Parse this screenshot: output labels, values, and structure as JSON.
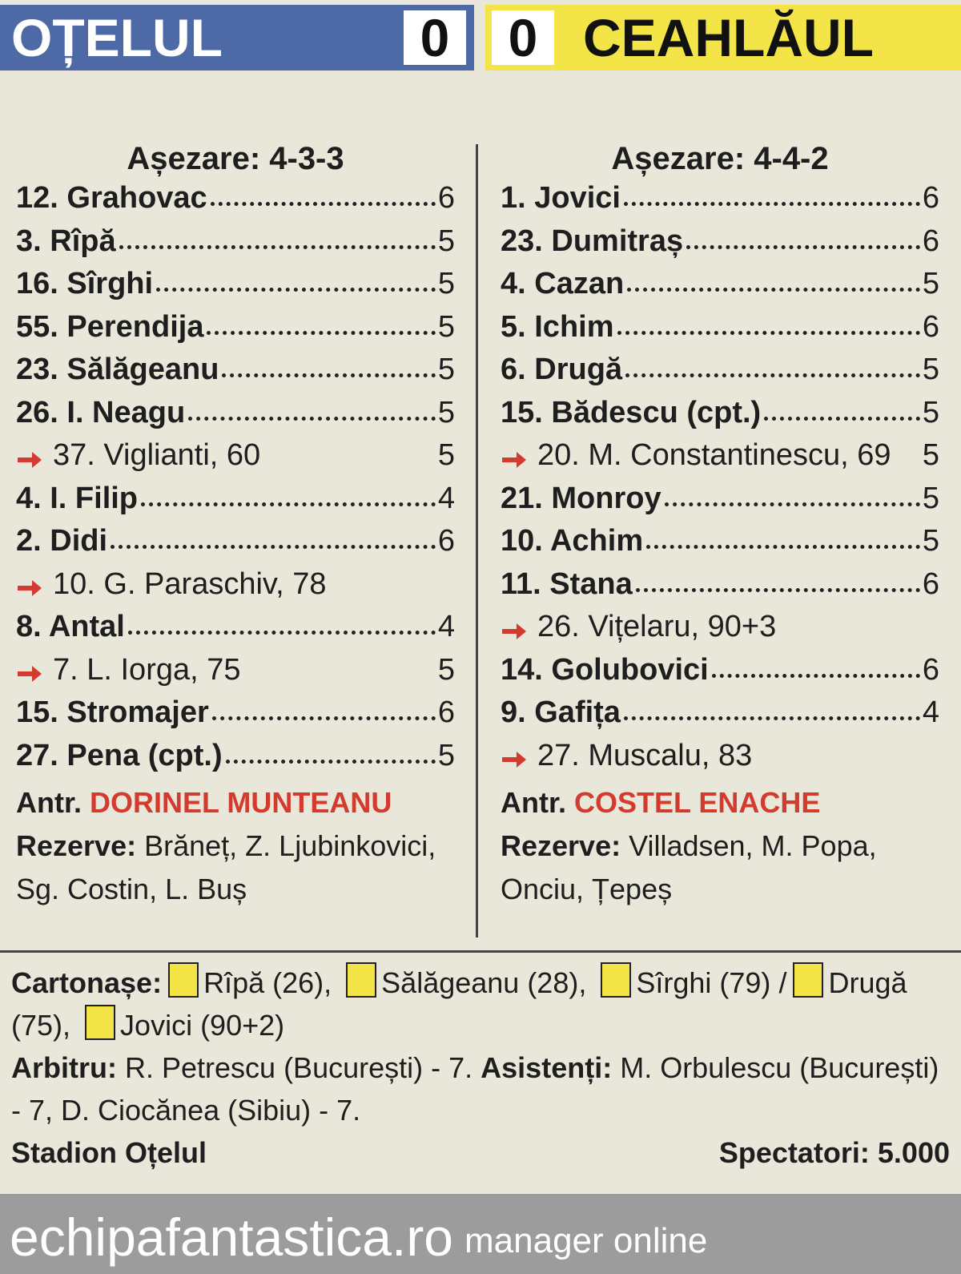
{
  "header": {
    "home_team": "OȚELUL",
    "home_score": 0,
    "away_score": 0,
    "away_team": "CEAHLĂUL"
  },
  "home": {
    "formation": "Așezare: 4-3-3",
    "rows": [
      {
        "name": "12. Grahovac",
        "rating": 6
      },
      {
        "name": "3. Rîpă",
        "rating": 5
      },
      {
        "name": "16. Sîrghi",
        "rating": 5
      },
      {
        "name": "55. Perendija",
        "rating": 5
      },
      {
        "name": "23. Sălăgeanu",
        "rating": 5
      },
      {
        "name": "26. I. Neagu",
        "rating": 5
      },
      {
        "sub": "37. Viglianti, 60",
        "rating": 5
      },
      {
        "name": "4. I. Filip",
        "rating": 4
      },
      {
        "name": "2. Didi",
        "rating": 6
      },
      {
        "sub": "10. G. Paraschiv, 78"
      },
      {
        "name": "8. Antal",
        "rating": 4
      },
      {
        "sub": "7. L. Iorga, 75",
        "rating": 5
      },
      {
        "name": "15. Stromajer",
        "rating": 6
      },
      {
        "name": "27. Pena (cpt.)",
        "rating": 5
      }
    ],
    "coach_label": "Antr.",
    "coach": "DORINEL MUNTEANU",
    "reserves_label": "Rezerve:",
    "reserves": "Brăneț,  Z. Ljubinkovici, Sg. Costin, L. Buș"
  },
  "away": {
    "formation": "Așezare: 4-4-2",
    "rows": [
      {
        "name": "1. Jovici",
        "rating": 6
      },
      {
        "name": "23. Dumitraș",
        "rating": 6
      },
      {
        "name": "4. Cazan",
        "rating": 5
      },
      {
        "name": "5. Ichim",
        "rating": 6
      },
      {
        "name": "6. Drugă",
        "rating": 5
      },
      {
        "name": "15. Bădescu (cpt.)",
        "rating": 5
      },
      {
        "sub": "20. M. Constantinescu, 69",
        "rating": 5
      },
      {
        "name": "21. Monroy",
        "rating": 5
      },
      {
        "name": "10. Achim",
        "rating": 5
      },
      {
        "name": "11. Stana",
        "rating": 6
      },
      {
        "sub": "26. Vițelaru, 90+3"
      },
      {
        "name": "14. Golubovici",
        "rating": 6
      },
      {
        "name": "9. Gafița",
        "rating": 4
      },
      {
        "sub": "27. Muscalu, 83"
      }
    ],
    "coach_label": "Antr.",
    "coach": "COSTEL ENACHE",
    "reserves_label": "Rezerve:",
    "reserves": "Villadsen, M. Popa, Onciu, Țepeș"
  },
  "footer": {
    "cards_label": "Cartonașe:",
    "home_cards": [
      "Rîpă (26),",
      "Sălăgeanu (28),",
      "Sîrghi (79)"
    ],
    "separator": "/",
    "away_cards": [
      "Drugă (75),",
      "Jovici (90+2)"
    ],
    "referee_label": "Arbitru:",
    "referee": "R. Petrescu (București) - 7.",
    "assistants_label": "Asistenți:",
    "assistants": "M. Orbulescu (București) - 7, D. Ciocănea (Sibiu) - 7.",
    "stadium": "Stadion Oțelul",
    "spectators": "Spectatori: 5.000"
  },
  "brand": {
    "site": "echipafantastica.ro",
    "tagline": "manager online"
  }
}
